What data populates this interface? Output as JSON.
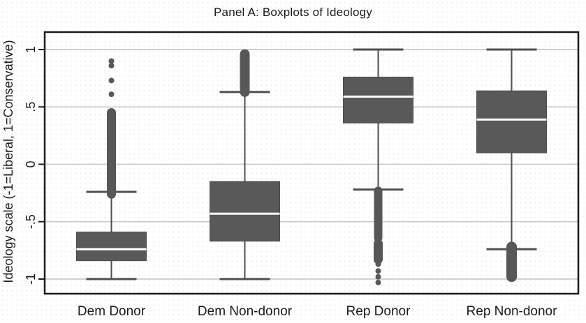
{
  "chart_data": {
    "type": "boxplot",
    "title": "Panel A: Boxplots of Ideology",
    "ylabel": "Ideology scale (-1=Liberal, 1=Conservative)",
    "xlabel": "",
    "ylim": [
      -1,
      1
    ],
    "grid": true,
    "legend": "none",
    "yticks": [
      {
        "value": 1,
        "label": "1"
      },
      {
        "value": 0.5,
        "label": ".5"
      },
      {
        "value": 0,
        "label": "0"
      },
      {
        "value": -0.5,
        "label": "-.5"
      },
      {
        "value": -1,
        "label": "-1"
      }
    ],
    "categories": [
      "Dem Donor",
      "Dem Non-donor",
      "Rep Donor",
      "Rep Non-donor"
    ],
    "colors": {
      "box_fill": "#595959",
      "box_edge": "#4c4c4c",
      "median": "#ffffff",
      "whisker": "#4f4f4f",
      "outlier": "#575757",
      "grid": "#cccccc",
      "frame": "#1a1a1a",
      "text": "#1a1a1a",
      "background": "#ffffff"
    },
    "boxes": [
      {
        "category": "Dem Donor",
        "whisker_low": -1.0,
        "q1": -0.84,
        "median": -0.74,
        "q3": -0.59,
        "whisker_high": -0.24,
        "outlier_dots": [
          0.9,
          0.86,
          0.73,
          0.61
        ],
        "outlier_strips": [
          {
            "from": 0.45,
            "to": -0.26,
            "thickness": 13
          }
        ]
      },
      {
        "category": "Dem Non-donor",
        "whisker_low": -1.0,
        "q1": -0.67,
        "median": -0.43,
        "q3": -0.15,
        "whisker_high": 0.63,
        "outlier_dots": [],
        "outlier_strips": [
          {
            "from": 0.96,
            "to": 0.63,
            "thickness": 14
          }
        ]
      },
      {
        "category": "Rep Donor",
        "whisker_low": -0.22,
        "q1": 0.36,
        "median": 0.59,
        "q3": 0.76,
        "whisker_high": 1.0,
        "outlier_dots": [
          -0.87,
          -0.93,
          -0.98,
          -1.03
        ],
        "outlier_strips": [
          {
            "from": -0.23,
            "to": -0.64,
            "thickness": 12
          },
          {
            "from": -0.69,
            "to": -0.83,
            "thickness": 13
          }
        ]
      },
      {
        "category": "Rep Non-donor",
        "whisker_low": -0.74,
        "q1": 0.1,
        "median": 0.39,
        "q3": 0.64,
        "whisker_high": 1.0,
        "outlier_dots": [],
        "outlier_strips": [
          {
            "from": -0.72,
            "to": -0.98,
            "thickness": 15
          }
        ]
      }
    ]
  }
}
